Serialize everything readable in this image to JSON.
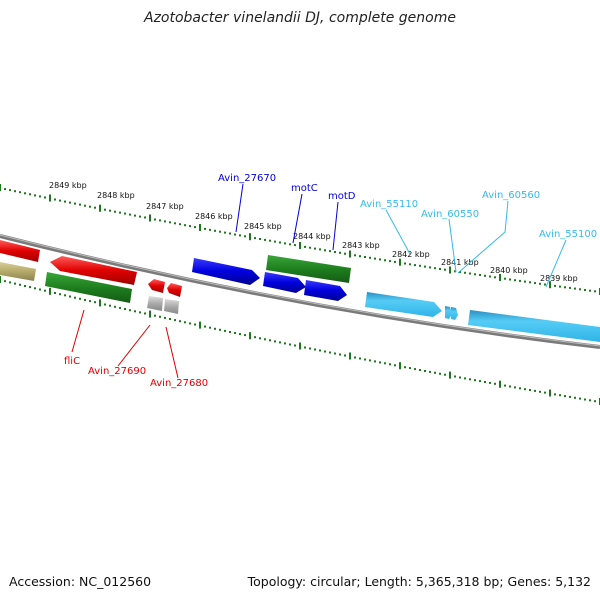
{
  "title": "Azotobacter vinelandii DJ, complete genome",
  "footer": {
    "accession": "Accession: NC_012560",
    "summary": "Topology: circular; Length: 5,365,318 bp; Genes: 5,132"
  },
  "ticks": [
    "2849 kbp",
    "2848 kbp",
    "2847 kbp",
    "2846 kbp",
    "2845 kbp",
    "2844 kbp",
    "2843 kbp",
    "2842 kbp",
    "2841 kbp",
    "2840 kbp",
    "2839 kbp"
  ],
  "labels": {
    "flic": "fliC",
    "avin_27690": "Avin_27690",
    "avin_27680": "Avin_27680",
    "avin_27670": "Avin_27670",
    "motc": "motC",
    "motd": "motD",
    "avin_55110": "Avin_55110",
    "avin_60550": "Avin_60550",
    "avin_60560": "Avin_60560",
    "avin_55100": "Avin_55100"
  },
  "colors": {
    "red": "#e00000",
    "green": "#1e7f1e",
    "blue": "#0000dd",
    "cyan": "#33bbee",
    "gray": "#999999",
    "olive": "#b5a96a",
    "tick_green": "#1a7a1a",
    "backbone": "#7a7a7a"
  }
}
